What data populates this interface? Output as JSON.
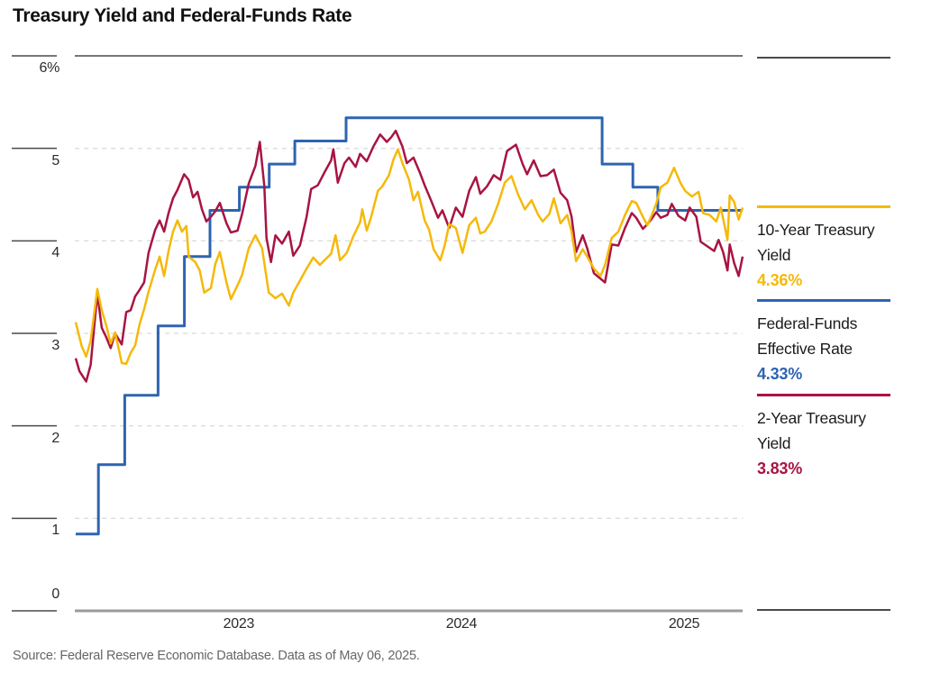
{
  "title": "Treasury Yield and Federal-Funds Rate",
  "source": "Source: Federal Reserve Economic Database. Data as of May 06, 2025.",
  "colors": {
    "gold": "#F5B90A",
    "blue": "#2E64B0",
    "crimson": "#A81442",
    "grid_dashed": "#DBDBDB",
    "frame_dark": "#4A4A4A",
    "axis_gray": "#9B9B9B",
    "text_dark": "#1A1A1A",
    "text_gray": "#63666A"
  },
  "legend": {
    "entries": [
      {
        "label": "10-Year Treasury Yield",
        "value": "4.36%",
        "color": "#F5B90A"
      },
      {
        "label": "Federal-Funds Effective Rate",
        "value": "4.33%",
        "color": "#2E64B0"
      },
      {
        "label": "2-Year Treasury Yield",
        "value": "3.83%",
        "color": "#A81442"
      }
    ]
  },
  "chart_data": {
    "type": "line",
    "title": "Treasury Yield and Federal-Funds Rate",
    "x_axis": {
      "range": [
        2022.353,
        2025.348
      ],
      "ticks": [
        2023,
        2024,
        2025
      ],
      "labels": [
        "2023",
        "2024",
        "2025"
      ]
    },
    "y_axis": {
      "range": [
        0,
        6
      ],
      "ticks": [
        6,
        5,
        4,
        3,
        2,
        1,
        0
      ],
      "labels": [
        "6%",
        "5",
        "4",
        "3",
        "2",
        "1",
        "0"
      ],
      "unit": "percent"
    },
    "grid": "horizontal-dashed",
    "legend_position": "right",
    "series": [
      {
        "name": "Federal-Funds Effective Rate",
        "style": "step",
        "color": "#2E64B0",
        "final_value": 4.33,
        "points": [
          [
            2022.353,
            0.83
          ],
          [
            2022.455,
            1.58
          ],
          [
            2022.573,
            2.33
          ],
          [
            2022.723,
            3.08
          ],
          [
            2022.841,
            3.83
          ],
          [
            2022.956,
            4.33
          ],
          [
            2023.088,
            4.58
          ],
          [
            2023.222,
            4.83
          ],
          [
            2023.337,
            5.08
          ],
          [
            2023.567,
            5.33
          ],
          [
            2024.717,
            4.83
          ],
          [
            2024.855,
            4.58
          ],
          [
            2024.967,
            4.33
          ]
        ]
      },
      {
        "name": "2-Year Treasury Yield",
        "style": "line",
        "color": "#A81442",
        "final_value": 3.83,
        "points": [
          [
            2022.353,
            2.73
          ],
          [
            2022.37,
            2.59
          ],
          [
            2022.4,
            2.48
          ],
          [
            2022.42,
            2.66
          ],
          [
            2022.45,
            3.43
          ],
          [
            2022.47,
            3.06
          ],
          [
            2022.49,
            2.96
          ],
          [
            2022.51,
            2.84
          ],
          [
            2022.53,
            3.0
          ],
          [
            2022.56,
            2.88
          ],
          [
            2022.58,
            3.23
          ],
          [
            2022.6,
            3.25
          ],
          [
            2022.62,
            3.4
          ],
          [
            2022.64,
            3.47
          ],
          [
            2022.66,
            3.55
          ],
          [
            2022.68,
            3.87
          ],
          [
            2022.71,
            4.12
          ],
          [
            2022.73,
            4.22
          ],
          [
            2022.75,
            4.1
          ],
          [
            2022.77,
            4.3
          ],
          [
            2022.79,
            4.46
          ],
          [
            2022.81,
            4.55
          ],
          [
            2022.84,
            4.72
          ],
          [
            2022.86,
            4.66
          ],
          [
            2022.88,
            4.47
          ],
          [
            2022.9,
            4.53
          ],
          [
            2022.92,
            4.34
          ],
          [
            2022.94,
            4.21
          ],
          [
            2022.96,
            4.26
          ],
          [
            2022.98,
            4.32
          ],
          [
            2023.0,
            4.41
          ],
          [
            2023.03,
            4.19
          ],
          [
            2023.05,
            4.09
          ],
          [
            2023.08,
            4.11
          ],
          [
            2023.1,
            4.29
          ],
          [
            2023.13,
            4.62
          ],
          [
            2023.16,
            4.81
          ],
          [
            2023.18,
            5.07
          ],
          [
            2023.2,
            4.59
          ],
          [
            2023.21,
            4.03
          ],
          [
            2023.23,
            3.77
          ],
          [
            2023.25,
            4.06
          ],
          [
            2023.28,
            3.97
          ],
          [
            2023.31,
            4.1
          ],
          [
            2023.33,
            3.84
          ],
          [
            2023.36,
            3.95
          ],
          [
            2023.39,
            4.26
          ],
          [
            2023.41,
            4.56
          ],
          [
            2023.44,
            4.6
          ],
          [
            2023.47,
            4.74
          ],
          [
            2023.5,
            4.87
          ],
          [
            2023.51,
            4.99
          ],
          [
            2023.53,
            4.63
          ],
          [
            2023.56,
            4.84
          ],
          [
            2023.58,
            4.9
          ],
          [
            2023.61,
            4.8
          ],
          [
            2023.63,
            4.94
          ],
          [
            2023.66,
            4.86
          ],
          [
            2023.69,
            5.02
          ],
          [
            2023.72,
            5.15
          ],
          [
            2023.75,
            5.07
          ],
          [
            2023.77,
            5.12
          ],
          [
            2023.79,
            5.19
          ],
          [
            2023.82,
            5.02
          ],
          [
            2023.84,
            4.84
          ],
          [
            2023.87,
            4.9
          ],
          [
            2023.9,
            4.73
          ],
          [
            2023.92,
            4.6
          ],
          [
            2023.95,
            4.43
          ],
          [
            2023.98,
            4.25
          ],
          [
            2024.0,
            4.33
          ],
          [
            2024.03,
            4.14
          ],
          [
            2024.06,
            4.36
          ],
          [
            2024.09,
            4.26
          ],
          [
            2024.12,
            4.54
          ],
          [
            2024.15,
            4.69
          ],
          [
            2024.17,
            4.51
          ],
          [
            2024.2,
            4.59
          ],
          [
            2024.23,
            4.71
          ],
          [
            2024.26,
            4.66
          ],
          [
            2024.29,
            4.97
          ],
          [
            2024.33,
            5.04
          ],
          [
            2024.36,
            4.83
          ],
          [
            2024.38,
            4.72
          ],
          [
            2024.41,
            4.87
          ],
          [
            2024.44,
            4.7
          ],
          [
            2024.47,
            4.71
          ],
          [
            2024.5,
            4.77
          ],
          [
            2024.53,
            4.52
          ],
          [
            2024.56,
            4.44
          ],
          [
            2024.58,
            4.26
          ],
          [
            2024.6,
            3.88
          ],
          [
            2024.63,
            4.06
          ],
          [
            2024.65,
            3.92
          ],
          [
            2024.68,
            3.65
          ],
          [
            2024.73,
            3.55
          ],
          [
            2024.76,
            3.96
          ],
          [
            2024.79,
            3.95
          ],
          [
            2024.82,
            4.14
          ],
          [
            2024.85,
            4.3
          ],
          [
            2024.87,
            4.25
          ],
          [
            2024.9,
            4.13
          ],
          [
            2024.92,
            4.18
          ],
          [
            2024.94,
            4.24
          ],
          [
            2024.96,
            4.31
          ],
          [
            2024.98,
            4.25
          ],
          [
            2025.01,
            4.28
          ],
          [
            2025.03,
            4.4
          ],
          [
            2025.06,
            4.27
          ],
          [
            2025.09,
            4.22
          ],
          [
            2025.11,
            4.36
          ],
          [
            2025.14,
            4.26
          ],
          [
            2025.16,
            3.99
          ],
          [
            2025.19,
            3.94
          ],
          [
            2025.22,
            3.89
          ],
          [
            2025.24,
            4.01
          ],
          [
            2025.26,
            3.88
          ],
          [
            2025.28,
            3.68
          ],
          [
            2025.29,
            3.96
          ],
          [
            2025.31,
            3.76
          ],
          [
            2025.33,
            3.62
          ],
          [
            2025.348,
            3.83
          ]
        ]
      },
      {
        "name": "10-Year Treasury Yield",
        "style": "line",
        "color": "#F5B90A",
        "final_value": 4.36,
        "points": [
          [
            2022.353,
            3.12
          ],
          [
            2022.38,
            2.86
          ],
          [
            2022.4,
            2.75
          ],
          [
            2022.42,
            2.92
          ],
          [
            2022.45,
            3.48
          ],
          [
            2022.47,
            3.25
          ],
          [
            2022.49,
            3.09
          ],
          [
            2022.51,
            2.89
          ],
          [
            2022.53,
            3.01
          ],
          [
            2022.56,
            2.68
          ],
          [
            2022.58,
            2.67
          ],
          [
            2022.6,
            2.79
          ],
          [
            2022.62,
            2.87
          ],
          [
            2022.64,
            3.1
          ],
          [
            2022.66,
            3.26
          ],
          [
            2022.68,
            3.45
          ],
          [
            2022.71,
            3.69
          ],
          [
            2022.73,
            3.83
          ],
          [
            2022.75,
            3.62
          ],
          [
            2022.77,
            3.89
          ],
          [
            2022.79,
            4.1
          ],
          [
            2022.81,
            4.22
          ],
          [
            2022.83,
            4.1
          ],
          [
            2022.85,
            4.16
          ],
          [
            2022.86,
            3.83
          ],
          [
            2022.89,
            3.77
          ],
          [
            2022.91,
            3.68
          ],
          [
            2022.93,
            3.44
          ],
          [
            2022.96,
            3.49
          ],
          [
            2022.98,
            3.75
          ],
          [
            2023.0,
            3.88
          ],
          [
            2023.03,
            3.55
          ],
          [
            2023.05,
            3.37
          ],
          [
            2023.08,
            3.52
          ],
          [
            2023.1,
            3.63
          ],
          [
            2023.13,
            3.92
          ],
          [
            2023.16,
            4.06
          ],
          [
            2023.19,
            3.92
          ],
          [
            2023.22,
            3.44
          ],
          [
            2023.25,
            3.38
          ],
          [
            2023.28,
            3.43
          ],
          [
            2023.31,
            3.3
          ],
          [
            2023.33,
            3.44
          ],
          [
            2023.36,
            3.57
          ],
          [
            2023.39,
            3.7
          ],
          [
            2023.42,
            3.82
          ],
          [
            2023.45,
            3.74
          ],
          [
            2023.47,
            3.79
          ],
          [
            2023.5,
            3.86
          ],
          [
            2023.52,
            4.06
          ],
          [
            2023.54,
            3.79
          ],
          [
            2023.57,
            3.87
          ],
          [
            2023.6,
            4.05
          ],
          [
            2023.63,
            4.2
          ],
          [
            2023.64,
            4.34
          ],
          [
            2023.66,
            4.11
          ],
          [
            2023.68,
            4.26
          ],
          [
            2023.71,
            4.54
          ],
          [
            2023.73,
            4.59
          ],
          [
            2023.76,
            4.71
          ],
          [
            2023.78,
            4.88
          ],
          [
            2023.8,
            4.99
          ],
          [
            2023.82,
            4.84
          ],
          [
            2023.85,
            4.66
          ],
          [
            2023.87,
            4.44
          ],
          [
            2023.89,
            4.53
          ],
          [
            2023.92,
            4.22
          ],
          [
            2023.94,
            4.12
          ],
          [
            2023.96,
            3.91
          ],
          [
            2023.99,
            3.79
          ],
          [
            2024.01,
            3.95
          ],
          [
            2024.03,
            4.18
          ],
          [
            2024.06,
            4.14
          ],
          [
            2024.09,
            3.87
          ],
          [
            2024.12,
            4.17
          ],
          [
            2024.15,
            4.25
          ],
          [
            2024.17,
            4.08
          ],
          [
            2024.19,
            4.1
          ],
          [
            2024.22,
            4.21
          ],
          [
            2024.25,
            4.4
          ],
          [
            2024.28,
            4.63
          ],
          [
            2024.31,
            4.7
          ],
          [
            2024.34,
            4.5
          ],
          [
            2024.37,
            4.34
          ],
          [
            2024.4,
            4.44
          ],
          [
            2024.43,
            4.28
          ],
          [
            2024.45,
            4.21
          ],
          [
            2024.48,
            4.29
          ],
          [
            2024.5,
            4.46
          ],
          [
            2024.53,
            4.19
          ],
          [
            2024.56,
            4.28
          ],
          [
            2024.58,
            4.1
          ],
          [
            2024.6,
            3.78
          ],
          [
            2024.63,
            3.91
          ],
          [
            2024.65,
            3.83
          ],
          [
            2024.68,
            3.7
          ],
          [
            2024.71,
            3.62
          ],
          [
            2024.73,
            3.74
          ],
          [
            2024.76,
            4.03
          ],
          [
            2024.79,
            4.1
          ],
          [
            2024.82,
            4.28
          ],
          [
            2024.85,
            4.43
          ],
          [
            2024.87,
            4.41
          ],
          [
            2024.9,
            4.26
          ],
          [
            2024.92,
            4.17
          ],
          [
            2024.94,
            4.28
          ],
          [
            2024.96,
            4.4
          ],
          [
            2024.98,
            4.58
          ],
          [
            2025.01,
            4.63
          ],
          [
            2025.04,
            4.79
          ],
          [
            2025.07,
            4.62
          ],
          [
            2025.09,
            4.54
          ],
          [
            2025.12,
            4.48
          ],
          [
            2025.15,
            4.53
          ],
          [
            2025.17,
            4.3
          ],
          [
            2025.2,
            4.28
          ],
          [
            2025.23,
            4.21
          ],
          [
            2025.25,
            4.36
          ],
          [
            2025.28,
            4.01
          ],
          [
            2025.29,
            4.49
          ],
          [
            2025.31,
            4.42
          ],
          [
            2025.33,
            4.23
          ],
          [
            2025.348,
            4.36
          ]
        ]
      }
    ]
  }
}
